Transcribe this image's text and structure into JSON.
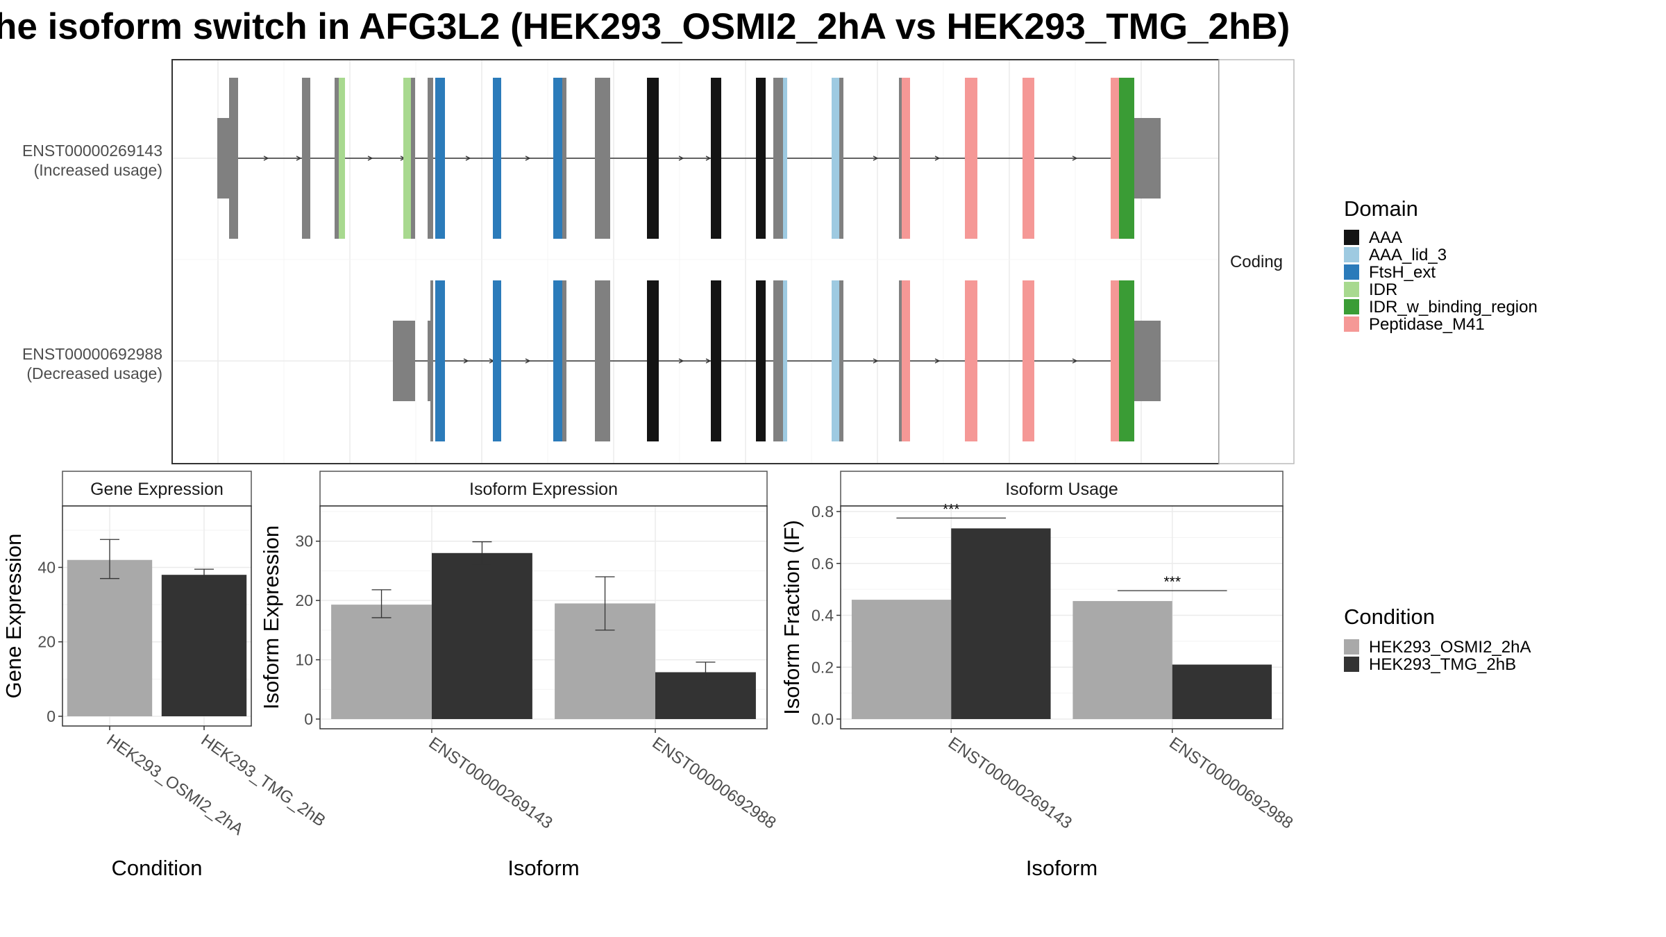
{
  "title": "he isoform switch in AFG3L2 (HEK293_OSMI2_2hA vs HEK293_TMG_2hB)",
  "structure": {
    "strip_label": "Coding",
    "isoforms": [
      {
        "id": "ENST00000269143",
        "note": "(Increased usage)",
        "has_upstream_exons": true
      },
      {
        "id": "ENST00000692988",
        "note": "(Decreased usage)",
        "has_upstream_exons": false
      }
    ],
    "legend": {
      "title": "Domain",
      "items": [
        {
          "name": "AAA",
          "color": "#141414"
        },
        {
          "name": "AAA_lid_3",
          "color": "#9ECAE1"
        },
        {
          "name": "FtsH_ext",
          "color": "#2B7BBA"
        },
        {
          "name": "IDR",
          "color": "#A8D98F"
        },
        {
          "name": "IDR_w_binding_region",
          "color": "#3A9C35"
        },
        {
          "name": "Peptidase_M41",
          "color": "#F59896"
        }
      ]
    },
    "noncoding_color": "#808080"
  },
  "chart_data": [
    {
      "type": "bar",
      "title": "Gene Expression",
      "xlabel": "Condition",
      "ylabel": "Gene Expression",
      "ylim": [
        0,
        55
      ],
      "yticks": [
        0,
        20,
        40
      ],
      "categories": [
        "HEK293_OSMI2_2hA",
        "HEK293_TMG_2hB"
      ],
      "values": [
        42,
        38
      ],
      "error_low": [
        37,
        37
      ],
      "error_high": [
        47.5,
        39.5
      ],
      "colors": [
        "#A9A9A9",
        "#333333"
      ]
    },
    {
      "type": "bar",
      "title": "Isoform Expression",
      "xlabel": "Isoform",
      "ylabel": "Isoform Expression",
      "ylim": [
        0,
        35
      ],
      "yticks": [
        0,
        10,
        20,
        30
      ],
      "categories": [
        "ENST00000269143",
        "ENST00000692988"
      ],
      "series": [
        {
          "name": "HEK293_OSMI2_2hA",
          "values": [
            19.3,
            19.5
          ],
          "error_low": [
            17.1,
            15.0
          ],
          "error_high": [
            21.8,
            24.0
          ],
          "color": "#A9A9A9"
        },
        {
          "name": "HEK293_TMG_2hB",
          "values": [
            28.0,
            7.9
          ],
          "error_low": [
            26.0,
            6.3
          ],
          "error_high": [
            29.9,
            9.6
          ],
          "color": "#333333"
        }
      ]
    },
    {
      "type": "bar",
      "title": "Isoform Usage",
      "xlabel": "Isoform",
      "ylabel": "Isoform Fraction (IF)",
      "ylim": [
        0,
        0.8
      ],
      "yticks": [
        "0.0",
        "0.2",
        "0.4",
        "0.6",
        "0.8"
      ],
      "categories": [
        "ENST00000269143",
        "ENST00000692988"
      ],
      "series": [
        {
          "name": "HEK293_OSMI2_2hA",
          "values": [
            0.46,
            0.455
          ],
          "color": "#A9A9A9"
        },
        {
          "name": "HEK293_TMG_2hB",
          "values": [
            0.735,
            0.21
          ],
          "color": "#333333"
        }
      ],
      "significance": [
        "***",
        "***"
      ],
      "significance_level": [
        0.775,
        0.495
      ]
    }
  ],
  "condition_legend": {
    "title": "Condition",
    "items": [
      {
        "name": "HEK293_OSMI2_2hA",
        "color": "#A9A9A9"
      },
      {
        "name": "HEK293_TMG_2hB",
        "color": "#333333"
      }
    ]
  }
}
